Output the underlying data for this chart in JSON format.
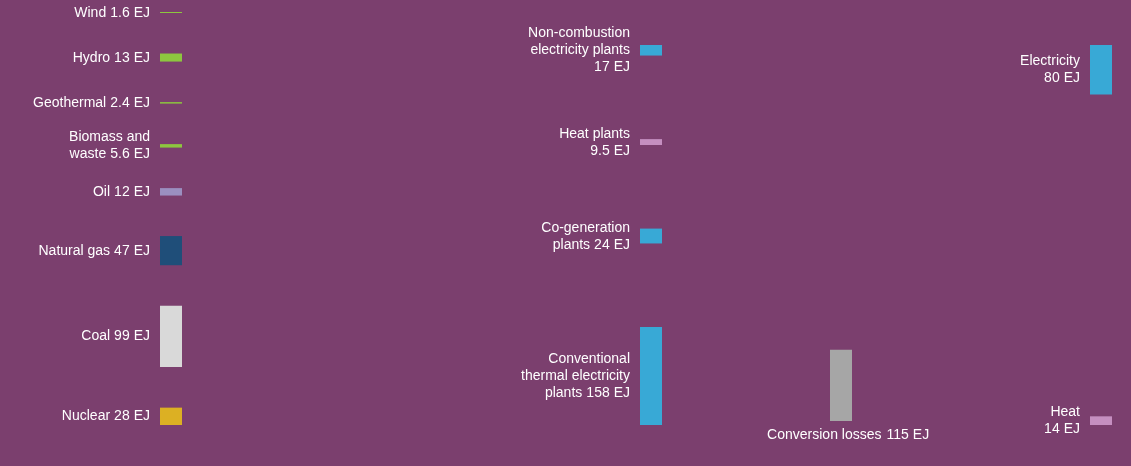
{
  "chart_data": {
    "type": "other",
    "categories": [
      "Wind",
      "Hydro",
      "Geothermal",
      "Biomass and\nwaste",
      "Oil",
      "Natural gas",
      "Coal",
      "Nuclear",
      "Non-combustion\nelectricity plants\n",
      "Heat plants\n",
      "Co-generation\nplants",
      "Conventional\nthermal electricity\nplants",
      "Electricity\n",
      "Heat\n",
      "Conversion losses"
    ],
    "series": [
      {
        "values": [
          1.6,
          13,
          2.4,
          5.6,
          12,
          47,
          99,
          28,
          null,
          null,
          null,
          null,
          null,
          null,
          null
        ]
      },
      {
        "values": [
          null,
          null,
          null,
          null,
          null,
          null,
          null,
          null,
          17,
          9.5,
          24,
          158,
          null,
          null,
          null
        ]
      },
      {
        "values": [
          null,
          null,
          null,
          null,
          null,
          null,
          null,
          null,
          null,
          null,
          null,
          null,
          80,
          14,
          null
        ]
      },
      {
        "values": [
          null,
          null,
          null,
          null,
          null,
          null,
          null,
          null,
          null,
          null,
          null,
          null,
          null,
          null,
          115
        ]
      }
    ],
    "data_labels": true,
    "ylabel": "EJ",
    "colors": [
      "#8dc63f",
      "#8dc63f",
      "#8dc63f",
      "#8dc63f",
      "#9b8fc0",
      "#1f4e79",
      "#d9d9d9",
      "#dcb023",
      "#38a9d6",
      "#c58fc0",
      "#38a9d6",
      "#38a9d6",
      "#38a9d6",
      "#c58fc0",
      "#a6a6a6"
    ]
  }
}
